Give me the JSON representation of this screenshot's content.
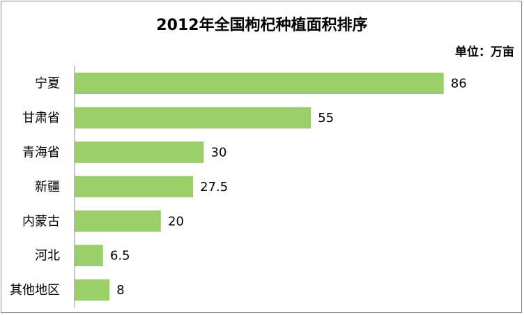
{
  "chart_data": {
    "type": "bar",
    "orientation": "horizontal",
    "title": "2012年全国枸杞种植面积排序",
    "unit_label": "单位：万亩",
    "categories": [
      "宁夏",
      "甘肃省",
      "青海省",
      "新疆",
      "内蒙古",
      "河北",
      "其他地区"
    ],
    "values": [
      86,
      55,
      30,
      27.5,
      20,
      6.5,
      8
    ],
    "value_labels": [
      "86",
      "55",
      "30",
      "27.5",
      "20",
      "6.5",
      "8"
    ],
    "xlim": [
      0,
      100
    ],
    "grid": false,
    "legend": "none",
    "bar_color": "#9BCF6A",
    "bar_border_color": "#8dbf5d",
    "axis_color": "#8c8c8c"
  }
}
